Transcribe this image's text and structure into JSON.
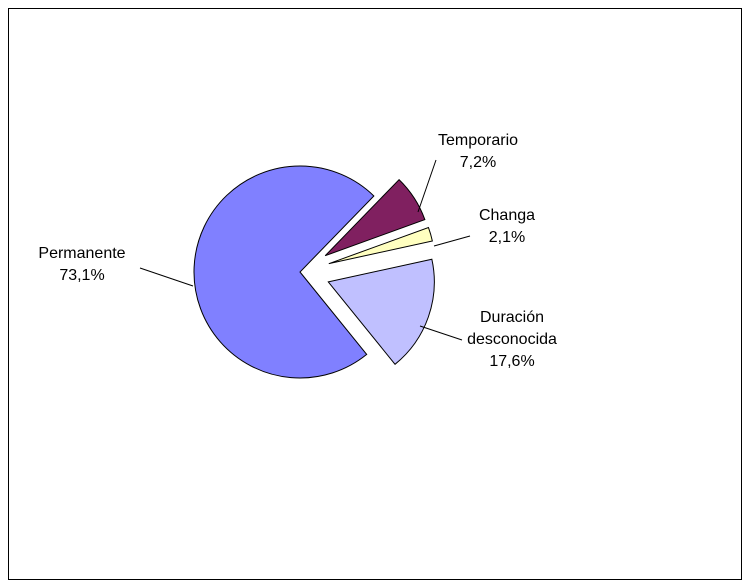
{
  "chart_data": {
    "type": "pie",
    "categories": [
      "Permanente",
      "Temporario",
      "Changa",
      "Duración desconocida"
    ],
    "values": [
      73.1,
      7.2,
      2.1,
      17.6
    ],
    "value_labels": [
      "73,1%",
      "7,2%",
      "2,1%",
      "17,6%"
    ],
    "colors": [
      "#8080ff",
      "#802060",
      "#ffffc0",
      "#c0c0ff"
    ],
    "exploded": [
      false,
      true,
      true,
      true
    ]
  }
}
